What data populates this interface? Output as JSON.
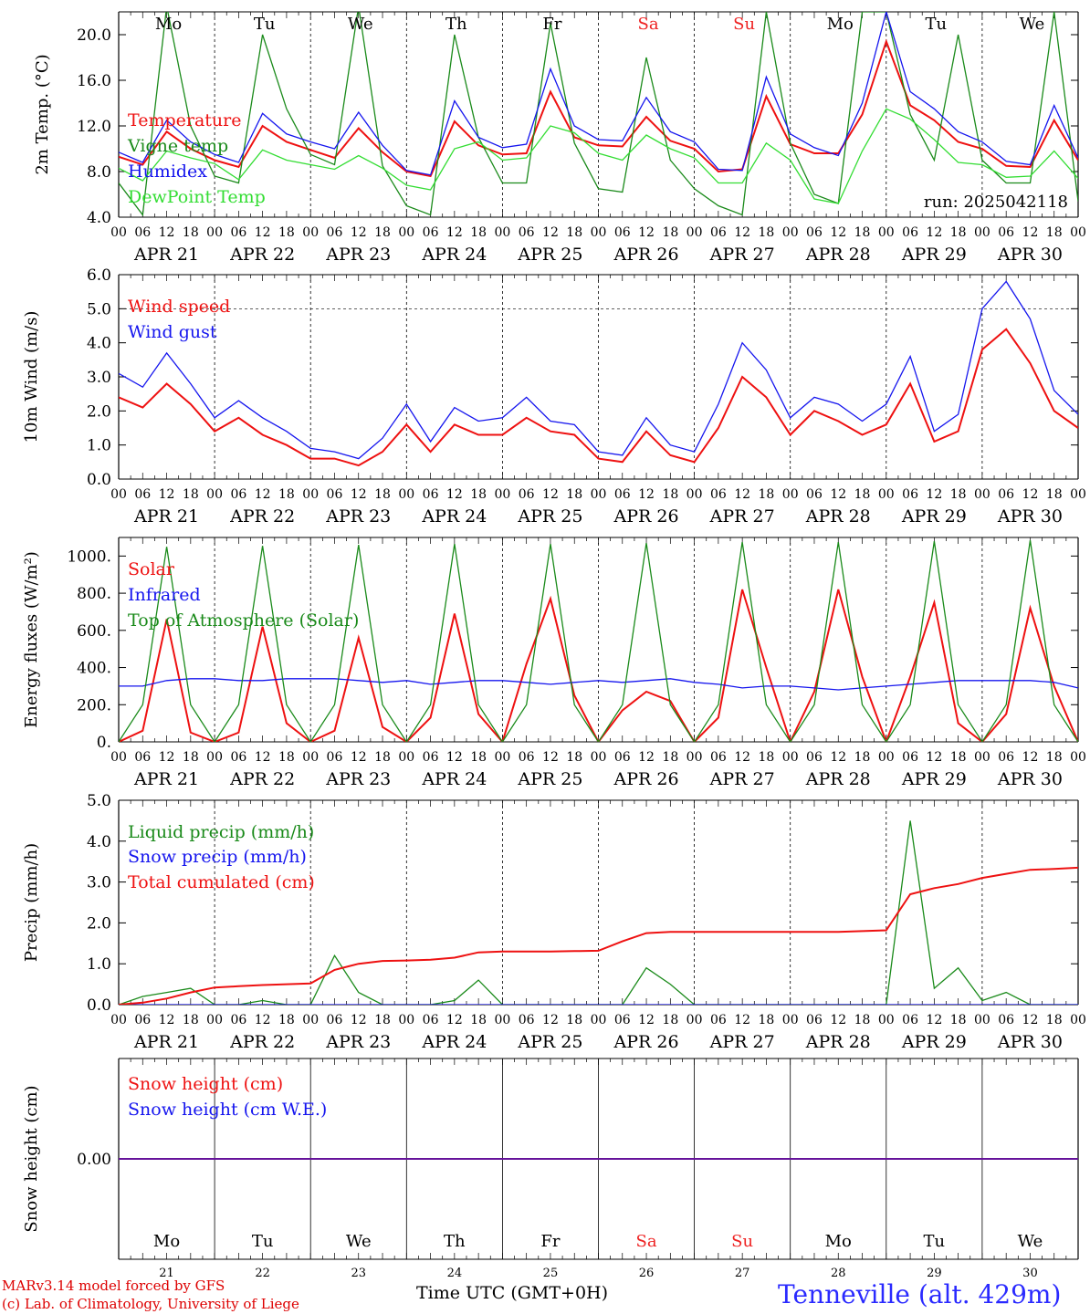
{
  "footer": {
    "credit_line1": "MARv3.14 model forced by GFS",
    "credit_line2": "(c) Lab. of Climatology, University of Liege",
    "x_axis_title": "Time UTC (GMT+0H)",
    "station": "Tenneville (alt. 429m)"
  },
  "colors": {
    "red": "#ee1111",
    "green": "#1a8a1a",
    "blue": "#1515ee",
    "light_green": "#33dd33",
    "weekend_red": "#ee2222"
  },
  "x_axis": {
    "days": [
      "APR 21",
      "APR 22",
      "APR 23",
      "APR 24",
      "APR 25",
      "APR 26",
      "APR 27",
      "APR 28",
      "APR 29",
      "APR 30"
    ],
    "day_numbers": [
      "21",
      "22",
      "23",
      "24",
      "25",
      "26",
      "27",
      "28",
      "29",
      "30"
    ],
    "weekdays": [
      "Mo",
      "Tu",
      "We",
      "Th",
      "Fr",
      "Sa",
      "Su",
      "Mo",
      "Tu",
      "We"
    ],
    "weekend_days": [
      "Sa",
      "Su"
    ],
    "hour_ticks": [
      "00",
      "06",
      "12",
      "18"
    ]
  },
  "chart_data": [
    {
      "type": "line",
      "ylabel": "2m Temp. (°C)",
      "ylim": [
        4.0,
        22.0
      ],
      "yticks": [
        "4.0",
        "8.0",
        "12.0",
        "16.0",
        "20.0"
      ],
      "annotation": "run: 2025042118",
      "x": [
        0,
        6,
        12,
        18,
        24,
        30,
        36,
        42,
        48,
        54,
        60,
        66,
        72,
        78,
        84,
        90,
        96,
        102,
        108,
        114,
        120,
        126,
        132,
        138,
        144,
        150,
        156,
        162,
        168,
        174,
        180,
        186,
        192,
        198,
        204,
        210,
        216,
        222,
        228,
        234,
        240
      ],
      "series": [
        {
          "name": "Temperature",
          "color": "red",
          "values": [
            9.3,
            8.6,
            11.5,
            10.0,
            9.0,
            8.4,
            12.0,
            10.6,
            9.9,
            9.2,
            11.8,
            9.7,
            8.0,
            7.6,
            12.4,
            10.3,
            9.5,
            9.6,
            15.0,
            11.0,
            10.3,
            10.2,
            12.8,
            10.7,
            10.0,
            8.0,
            8.2,
            14.6,
            10.4,
            9.6,
            9.6,
            13.0,
            19.4,
            13.8,
            12.5,
            10.6,
            10.0,
            8.5,
            8.4,
            12.5,
            9.0
          ]
        },
        {
          "name": "Vigne temp",
          "color": "green",
          "values": [
            7.0,
            4.2,
            22.5,
            12.0,
            7.6,
            7.0,
            20.0,
            13.5,
            9.5,
            8.6,
            22.5,
            8.5,
            5.0,
            4.2,
            20.0,
            11.0,
            7.0,
            7.0,
            21.0,
            10.5,
            6.5,
            6.2,
            18.0,
            9.0,
            6.5,
            5.0,
            4.2,
            22.0,
            10.5,
            6.0,
            5.2,
            22.0,
            22.0,
            13.0,
            9.0,
            20.0,
            9.0,
            7.0,
            7.0,
            22.0,
            5.4
          ]
        },
        {
          "name": "Humidex",
          "color": "blue",
          "values": [
            9.7,
            8.8,
            12.5,
            10.6,
            9.5,
            8.8,
            13.1,
            11.3,
            10.6,
            10.0,
            13.2,
            10.3,
            8.1,
            7.7,
            14.2,
            11.0,
            10.1,
            10.4,
            17.0,
            12.0,
            10.8,
            10.7,
            14.5,
            11.5,
            10.6,
            8.2,
            8.1,
            16.3,
            11.3,
            10.1,
            9.4,
            14.0,
            22.0,
            15.0,
            13.5,
            11.5,
            10.6,
            8.9,
            8.6,
            13.8,
            9.2
          ]
        },
        {
          "name": "DewPoint Temp",
          "color": "light_green",
          "values": [
            8.3,
            7.2,
            9.8,
            9.2,
            8.7,
            7.3,
            9.9,
            9.0,
            8.6,
            8.2,
            9.4,
            8.3,
            6.8,
            6.4,
            10.0,
            10.6,
            9.0,
            9.2,
            12.0,
            11.4,
            9.6,
            9.0,
            11.2,
            10.0,
            9.2,
            7.0,
            7.0,
            10.5,
            9.0,
            5.6,
            5.2,
            9.8,
            13.5,
            12.6,
            10.8,
            8.8,
            8.6,
            7.5,
            7.6,
            9.8,
            7.4
          ]
        }
      ]
    },
    {
      "type": "line",
      "ylabel": "10m Wind (m/s)",
      "ylim": [
        0.0,
        6.0
      ],
      "yticks": [
        "0.0",
        "1.0",
        "2.0",
        "3.0",
        "4.0",
        "5.0",
        "6.0"
      ],
      "reference_line": 5.0,
      "x": [
        0,
        6,
        12,
        18,
        24,
        30,
        36,
        42,
        48,
        54,
        60,
        66,
        72,
        78,
        84,
        90,
        96,
        102,
        108,
        114,
        120,
        126,
        132,
        138,
        144,
        150,
        156,
        162,
        168,
        174,
        180,
        186,
        192,
        198,
        204,
        210,
        216,
        222,
        228,
        234,
        240
      ],
      "series": [
        {
          "name": "Wind speed",
          "color": "red",
          "values": [
            2.4,
            2.1,
            2.8,
            2.2,
            1.4,
            1.8,
            1.3,
            1.0,
            0.6,
            0.6,
            0.4,
            0.8,
            1.6,
            0.8,
            1.6,
            1.3,
            1.3,
            1.8,
            1.4,
            1.3,
            0.6,
            0.5,
            1.4,
            0.7,
            0.5,
            1.5,
            3.0,
            2.4,
            1.3,
            2.0,
            1.7,
            1.3,
            1.6,
            2.8,
            1.1,
            1.4,
            3.8,
            4.4,
            3.4,
            2.0,
            1.5
          ]
        },
        {
          "name": "Wind gust",
          "color": "blue",
          "values": [
            3.1,
            2.7,
            3.7,
            2.8,
            1.8,
            2.3,
            1.8,
            1.4,
            0.9,
            0.8,
            0.6,
            1.2,
            2.2,
            1.1,
            2.1,
            1.7,
            1.8,
            2.4,
            1.7,
            1.6,
            0.8,
            0.7,
            1.8,
            1.0,
            0.8,
            2.2,
            4.0,
            3.2,
            1.8,
            2.4,
            2.2,
            1.7,
            2.2,
            3.6,
            1.4,
            1.9,
            5.0,
            5.8,
            4.7,
            2.6,
            1.9
          ]
        }
      ]
    },
    {
      "type": "line",
      "ylabel": "Energy fluxes (W/m²)",
      "ylim": [
        0,
        1100
      ],
      "yticks": [
        "0.",
        "200.",
        "400.",
        "600.",
        "800.",
        "1000."
      ],
      "x": [
        0,
        6,
        12,
        18,
        24,
        30,
        36,
        42,
        48,
        54,
        60,
        66,
        72,
        78,
        84,
        90,
        96,
        102,
        108,
        114,
        120,
        126,
        132,
        138,
        144,
        150,
        156,
        162,
        168,
        174,
        180,
        186,
        192,
        198,
        204,
        210,
        216,
        222,
        228,
        234,
        240
      ],
      "series": [
        {
          "name": "Solar",
          "color": "red",
          "values": [
            0,
            60,
            660,
            50,
            0,
            50,
            620,
            100,
            0,
            60,
            560,
            80,
            0,
            130,
            690,
            150,
            0,
            420,
            770,
            250,
            0,
            170,
            270,
            220,
            0,
            130,
            820,
            400,
            0,
            270,
            820,
            350,
            0,
            350,
            750,
            100,
            0,
            150,
            720,
            300,
            0
          ]
        },
        {
          "name": "Infrared",
          "color": "blue",
          "values": [
            300,
            300,
            330,
            340,
            340,
            330,
            330,
            340,
            340,
            340,
            330,
            320,
            330,
            310,
            320,
            330,
            330,
            320,
            310,
            320,
            330,
            320,
            330,
            340,
            320,
            310,
            290,
            300,
            300,
            290,
            280,
            290,
            300,
            310,
            320,
            330,
            330,
            330,
            330,
            320,
            290
          ]
        },
        {
          "name": "Top of Atmosphere (Solar)",
          "color": "green",
          "values": [
            0,
            200,
            1050,
            200,
            0,
            200,
            1055,
            200,
            0,
            200,
            1060,
            200,
            0,
            200,
            1065,
            200,
            0,
            200,
            1065,
            200,
            0,
            200,
            1070,
            200,
            0,
            200,
            1075,
            200,
            0,
            200,
            1075,
            200,
            0,
            200,
            1080,
            200,
            0,
            200,
            1085,
            200,
            0
          ]
        }
      ]
    },
    {
      "type": "line",
      "ylabel": "Precip (mm/h)",
      "ylim": [
        0.0,
        5.0
      ],
      "yticks": [
        "0.0",
        "1.0",
        "2.0",
        "3.0",
        "4.0",
        "5.0"
      ],
      "x": [
        0,
        6,
        12,
        18,
        24,
        30,
        36,
        42,
        48,
        54,
        60,
        66,
        72,
        78,
        84,
        90,
        96,
        102,
        108,
        114,
        120,
        126,
        132,
        138,
        144,
        150,
        156,
        162,
        168,
        174,
        180,
        186,
        192,
        198,
        204,
        210,
        216,
        222,
        228,
        234,
        240
      ],
      "series": [
        {
          "name": "Liquid precip (mm/h)",
          "color": "green",
          "values": [
            0,
            0.2,
            0.3,
            0.4,
            0,
            0,
            0.1,
            0,
            0,
            1.2,
            0.3,
            0,
            0,
            0,
            0.1,
            0.6,
            0,
            0,
            0,
            0,
            0,
            0,
            0.9,
            0.5,
            0,
            0,
            0,
            0,
            0,
            0,
            0,
            0,
            0,
            4.5,
            0.4,
            0.9,
            0.1,
            0.3,
            0,
            0,
            0
          ]
        },
        {
          "name": "Snow precip (mm/h)",
          "color": "blue",
          "values": [
            0,
            0,
            0,
            0,
            0,
            0,
            0,
            0,
            0,
            0,
            0,
            0,
            0,
            0,
            0,
            0,
            0,
            0,
            0,
            0,
            0,
            0,
            0,
            0,
            0,
            0,
            0,
            0,
            0,
            0,
            0,
            0,
            0,
            0,
            0,
            0,
            0,
            0,
            0,
            0,
            0
          ]
        },
        {
          "name": "Total cumulated (cm)",
          "color": "red",
          "values": [
            0,
            0.05,
            0.15,
            0.3,
            0.42,
            0.45,
            0.48,
            0.5,
            0.52,
            0.85,
            1.0,
            1.07,
            1.08,
            1.1,
            1.15,
            1.28,
            1.3,
            1.3,
            1.3,
            1.31,
            1.32,
            1.55,
            1.75,
            1.78,
            1.78,
            1.78,
            1.78,
            1.78,
            1.78,
            1.78,
            1.78,
            1.8,
            1.82,
            2.7,
            2.85,
            2.95,
            3.1,
            3.2,
            3.3,
            3.32,
            3.35
          ]
        }
      ]
    },
    {
      "type": "line",
      "ylabel": "Snow height (cm)",
      "ylim": [
        -0.01,
        0.01
      ],
      "yticks": [
        "0.00"
      ],
      "x": [
        0,
        240
      ],
      "series": [
        {
          "name": "Snow height (cm)",
          "color": "red",
          "values": [
            0,
            0
          ]
        },
        {
          "name": "Snow height (cm W.E.)",
          "color": "blue",
          "values": [
            0,
            0
          ]
        }
      ]
    }
  ]
}
